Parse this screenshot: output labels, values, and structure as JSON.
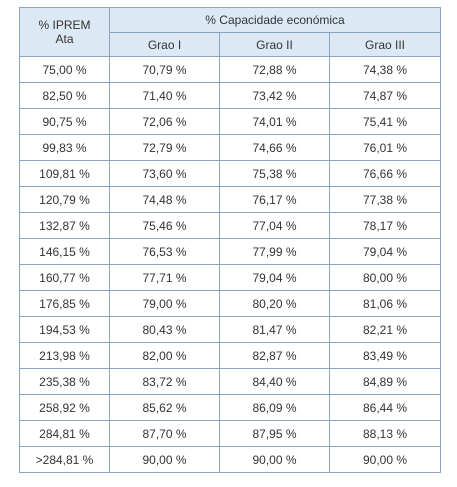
{
  "table": {
    "header": {
      "first_col_label": "% IPREM\nAta",
      "group_label": "% Capacidade económica",
      "sub_headers": [
        "Grao I",
        "Grao II",
        "Grao III"
      ]
    },
    "rows": [
      {
        "iprem": "75,00 %",
        "grao1": "70,79 %",
        "grao2": "72,88 %",
        "grao3": "74,38 %"
      },
      {
        "iprem": "82,50 %",
        "grao1": "71,40 %",
        "grao2": "73,42 %",
        "grao3": "74,87 %"
      },
      {
        "iprem": "90,75 %",
        "grao1": "72,06 %",
        "grao2": "74,01 %",
        "grao3": "75,41 %"
      },
      {
        "iprem": "99,83 %",
        "grao1": "72,79 %",
        "grao2": "74,66 %",
        "grao3": "76,01 %"
      },
      {
        "iprem": "109,81 %",
        "grao1": "73,60 %",
        "grao2": "75,38 %",
        "grao3": "76,66 %"
      },
      {
        "iprem": "120,79 %",
        "grao1": "74,48 %",
        "grao2": "76,17 %",
        "grao3": "77,38 %"
      },
      {
        "iprem": "132,87 %",
        "grao1": "75,46 %",
        "grao2": "77,04 %",
        "grao3": "78,17 %"
      },
      {
        "iprem": "146,15 %",
        "grao1": "76,53 %",
        "grao2": "77,99 %",
        "grao3": "79,04 %"
      },
      {
        "iprem": "160,77 %",
        "grao1": "77,71 %",
        "grao2": "79,04 %",
        "grao3": "80,00 %"
      },
      {
        "iprem": "176,85 %",
        "grao1": "79,00 %",
        "grao2": "80,20 %",
        "grao3": "81,06 %"
      },
      {
        "iprem": "194,53 %",
        "grao1": "80,43 %",
        "grao2": "81,47 %",
        "grao3": "82,21 %"
      },
      {
        "iprem": "213,98 %",
        "grao1": "82,00 %",
        "grao2": "82,87 %",
        "grao3": "83,49 %"
      },
      {
        "iprem": "235,38 %",
        "grao1": "83,72 %",
        "grao2": "84,40 %",
        "grao3": "84,89 %"
      },
      {
        "iprem": "258,92 %",
        "grao1": "85,62 %",
        "grao2": "86,09 %",
        "grao3": "86,44 %"
      },
      {
        "iprem": "284,81 %",
        "grao1": "87,70 %",
        "grao2": "87,95 %",
        "grao3": "88,13 %"
      },
      {
        "iprem": ">284,81 %",
        "grao1": "90,00 %",
        "grao2": "90,00 %",
        "grao3": "90,00 %"
      }
    ]
  },
  "colors": {
    "header_background": "#dce9f5",
    "border": "#8aa4be",
    "text": "#333333"
  }
}
